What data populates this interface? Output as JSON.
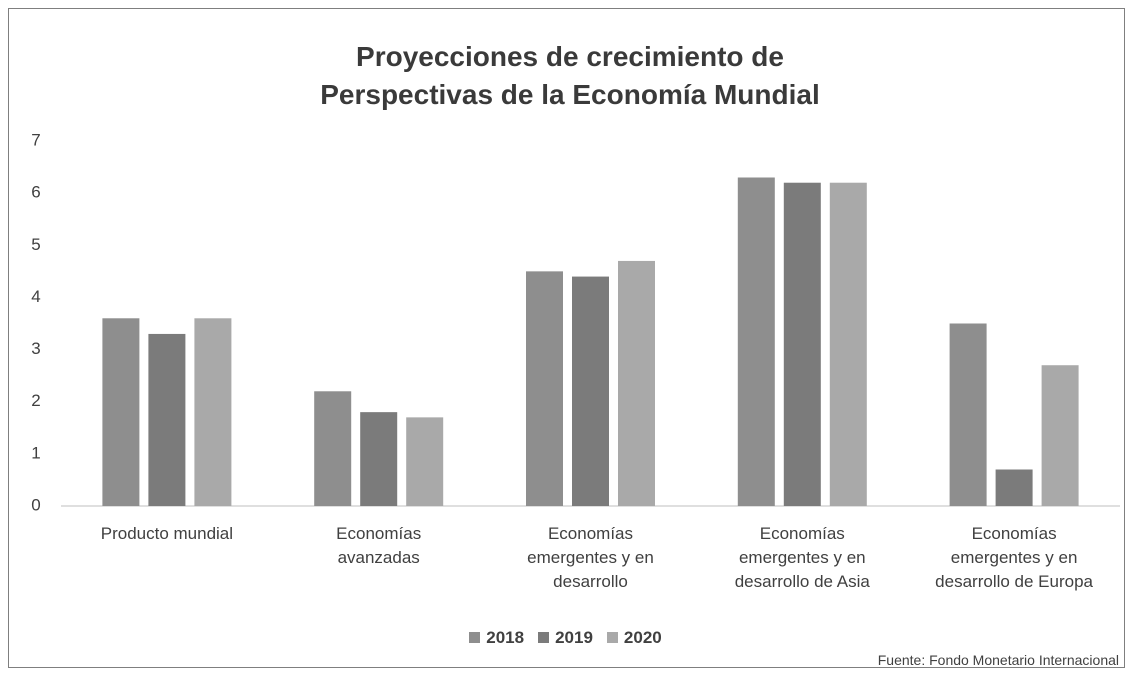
{
  "chart_data": {
    "type": "bar",
    "title": "Proyecciones de crecimiento de Perspectivas de la Economía Mundial",
    "categories": [
      "Producto mundial",
      "Economías avanzadas",
      "Economías emergentes y en desarrollo",
      "Economías emergentes y en desarrollo de Asia",
      "Economías emergentes y en desarrollo de Europa"
    ],
    "series": [
      {
        "name": "2018",
        "color": "#8e8e8e",
        "values": [
          3.6,
          2.2,
          4.5,
          6.3,
          3.5
        ]
      },
      {
        "name": "2019",
        "color": "#7b7b7b",
        "values": [
          3.3,
          1.8,
          4.4,
          6.2,
          0.7
        ]
      },
      {
        "name": "2020",
        "color": "#a9a9a9",
        "values": [
          3.6,
          1.7,
          4.7,
          6.2,
          2.7
        ]
      }
    ],
    "ylim": [
      0,
      7
    ],
    "yticks": [
      0,
      1,
      2,
      3,
      4,
      5,
      6,
      7
    ],
    "grid": false,
    "legend": "bottom",
    "source": "Fuente: Fondo Monetario Internacional"
  }
}
